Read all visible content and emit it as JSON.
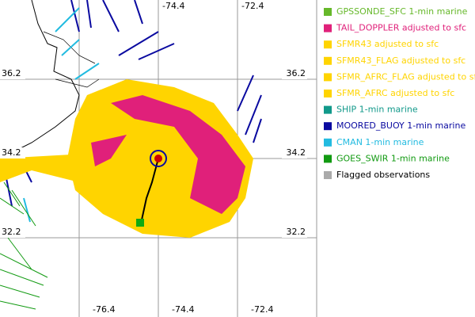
{
  "map": {
    "lon_labels_top": [
      "-74.4",
      "-72.4"
    ],
    "lon_labels_bottom": [
      "-76.4",
      "-74.4",
      "-72.4"
    ],
    "lat_labels_left": [
      "36.2",
      "34.2",
      "32.2"
    ],
    "lat_labels_right": [
      "36.2",
      "34.2",
      "32.2"
    ]
  },
  "legend": {
    "items": [
      {
        "label": "GPSSONDE_SFC 1-min marine",
        "color": "#66b82a"
      },
      {
        "label": "TAIL_DOPPLER adjusted to sfc",
        "color": "#e0207a"
      },
      {
        "label": "SFMR43 adjusted to sfc",
        "color": "#ffd400"
      },
      {
        "label": "SFMR43_FLAG adjusted to sfc",
        "color": "#ffd400"
      },
      {
        "label": "SFMR_AFRC_FLAG adjusted to sfc",
        "color": "#ffd400"
      },
      {
        "label": "SFMR_AFRC adjusted to sfc",
        "color": "#ffd400"
      },
      {
        "label": "SHIP 1-min marine",
        "color": "#11998a"
      },
      {
        "label": "MOORED_BUOY 1-min marine",
        "color": "#0a0aa0"
      },
      {
        "label": "CMAN 1-min marine",
        "color": "#22bbe0"
      },
      {
        "label": "GOES_SWIR 1-min marine",
        "color": "#119a11"
      },
      {
        "label": "Flagged observations",
        "color": "#aaaaaa"
      }
    ]
  }
}
